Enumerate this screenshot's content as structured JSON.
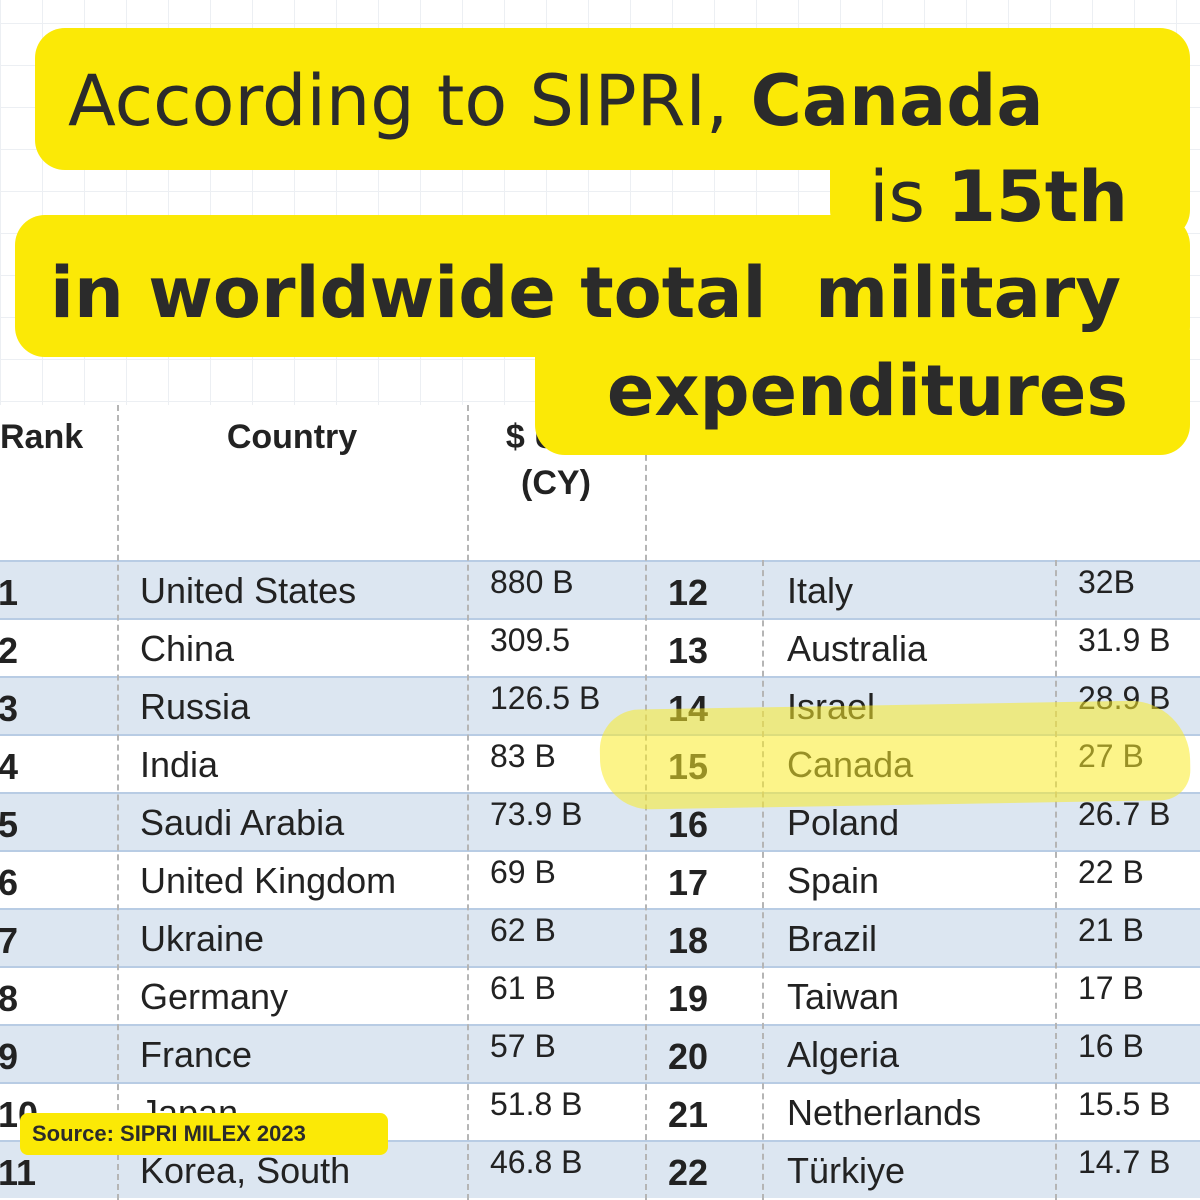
{
  "headline": {
    "line1": {
      "text": "According to SIPRI,",
      "bold": "Canada"
    },
    "line2": {
      "text": "is",
      "bold": "15th"
    },
    "line3": "in worldwide total  military",
    "line4": "expenditures"
  },
  "table": {
    "header": [
      "Rank",
      "Country",
      "$ USD (CY)"
    ],
    "rows": [
      [
        1,
        "United States",
        "880 B"
      ],
      [
        2,
        "China",
        "309.5"
      ],
      [
        3,
        "Russia",
        "126.5 B"
      ],
      [
        4,
        "India",
        "83 B"
      ],
      [
        5,
        "Saudi Arabia",
        "73.9 B"
      ],
      [
        6,
        "United Kingdom",
        "69 B"
      ],
      [
        7,
        "Ukraine",
        "62 B"
      ],
      [
        8,
        "Germany",
        "61 B"
      ],
      [
        9,
        "France",
        "57 B"
      ],
      [
        10,
        "Japan",
        "51.8 B"
      ],
      [
        11,
        "Korea, South",
        "46.8 B"
      ],
      [
        12,
        "Italy",
        "32B"
      ],
      [
        13,
        "Australia",
        "31.9 B"
      ],
      [
        14,
        "Israel",
        "28.9 B"
      ],
      [
        15,
        "Canada",
        "27 B"
      ],
      [
        16,
        "Poland",
        "26.7 B"
      ],
      [
        17,
        "Spain",
        "22 B"
      ],
      [
        18,
        "Brazil",
        "21 B"
      ],
      [
        19,
        "Taiwan",
        "17 B"
      ],
      [
        20,
        "Algeria",
        "16 B"
      ],
      [
        21,
        "Netherlands",
        "15.5 B"
      ],
      [
        22,
        "Türkiye",
        "14.7 B"
      ]
    ]
  },
  "source": "Source: SIPRI MILEX 2023"
}
